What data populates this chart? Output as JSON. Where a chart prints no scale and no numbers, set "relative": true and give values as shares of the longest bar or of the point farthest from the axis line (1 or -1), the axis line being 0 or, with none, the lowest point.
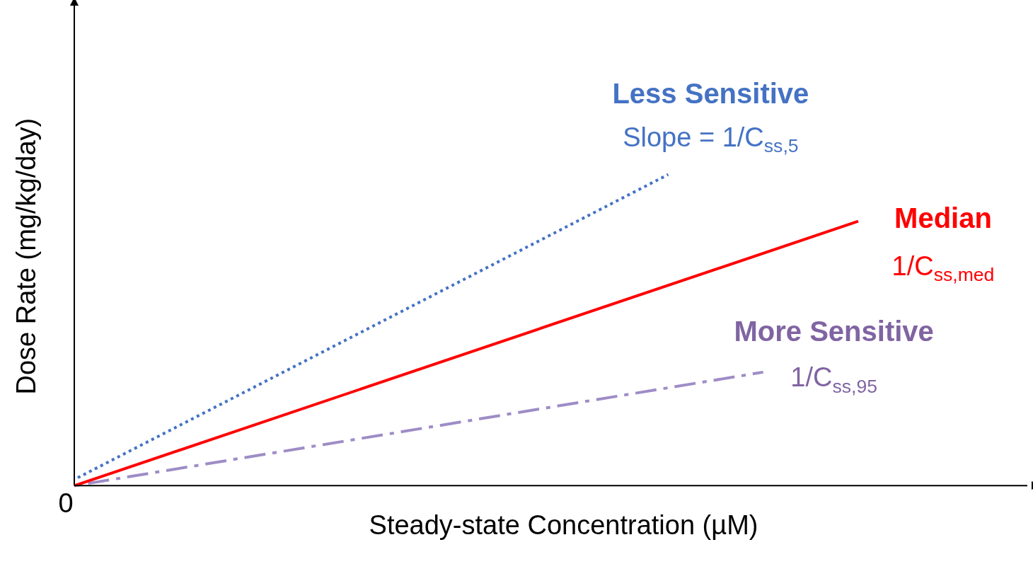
{
  "chart_data": {
    "type": "line",
    "relative": true,
    "xlabel": "Steady-state Concentration (µM)",
    "ylabel": "Dose Rate (mg/kg/day)",
    "legend": false,
    "marker": "none",
    "categories": [
      null,
      null,
      null,
      null,
      null,
      null,
      null,
      null,
      null,
      null,
      null,
      null,
      null,
      null,
      null,
      null,
      null,
      null,
      null,
      null,
      null,
      null,
      null,
      null,
      null,
      null,
      null,
      null,
      null,
      null,
      null,
      null,
      null,
      null,
      null,
      null,
      null,
      null,
      null,
      null,
      null
    ],
    "series": [
      {
        "color": "#4472c4",
        "line_style": "dotted",
        "values": [
          0.02,
          null,
          null,
          null,
          null,
          null,
          null,
          null,
          null,
          null,
          null,
          null,
          null,
          null,
          null,
          null,
          null,
          null,
          null,
          null,
          null,
          null,
          null,
          null,
          null,
          1,
          null,
          null,
          null,
          null,
          null,
          null,
          null,
          null,
          null,
          null,
          null,
          null,
          null,
          null,
          null
        ]
      },
      {
        "color": "#ff0000",
        "line_style": "solid",
        "values": [
          0,
          null,
          null,
          null,
          null,
          null,
          null,
          null,
          null,
          null,
          null,
          null,
          null,
          null,
          null,
          null,
          null,
          null,
          null,
          null,
          null,
          null,
          null,
          null,
          null,
          null,
          null,
          null,
          null,
          null,
          null,
          null,
          null,
          0.85,
          null,
          null,
          null,
          null,
          null,
          null,
          null
        ]
      },
      {
        "color": "#9e8cc6",
        "line_style": "dashed",
        "values": [
          0,
          null,
          null,
          null,
          null,
          null,
          null,
          null,
          null,
          null,
          null,
          null,
          null,
          null,
          null,
          null,
          null,
          null,
          null,
          null,
          null,
          null,
          null,
          null,
          null,
          null,
          null,
          null,
          null,
          0.365,
          null,
          null,
          null,
          null,
          null,
          null,
          null,
          null,
          null,
          null,
          null
        ]
      }
    ],
    "annotations": [
      "Less Sensitive",
      "Slope = 1/C$_{ss,5}$",
      "Median",
      "1/C$_{ss,med}$",
      "More Sensitive",
      "1/C$_{ss,95}$",
      "0"
    ]
  }
}
